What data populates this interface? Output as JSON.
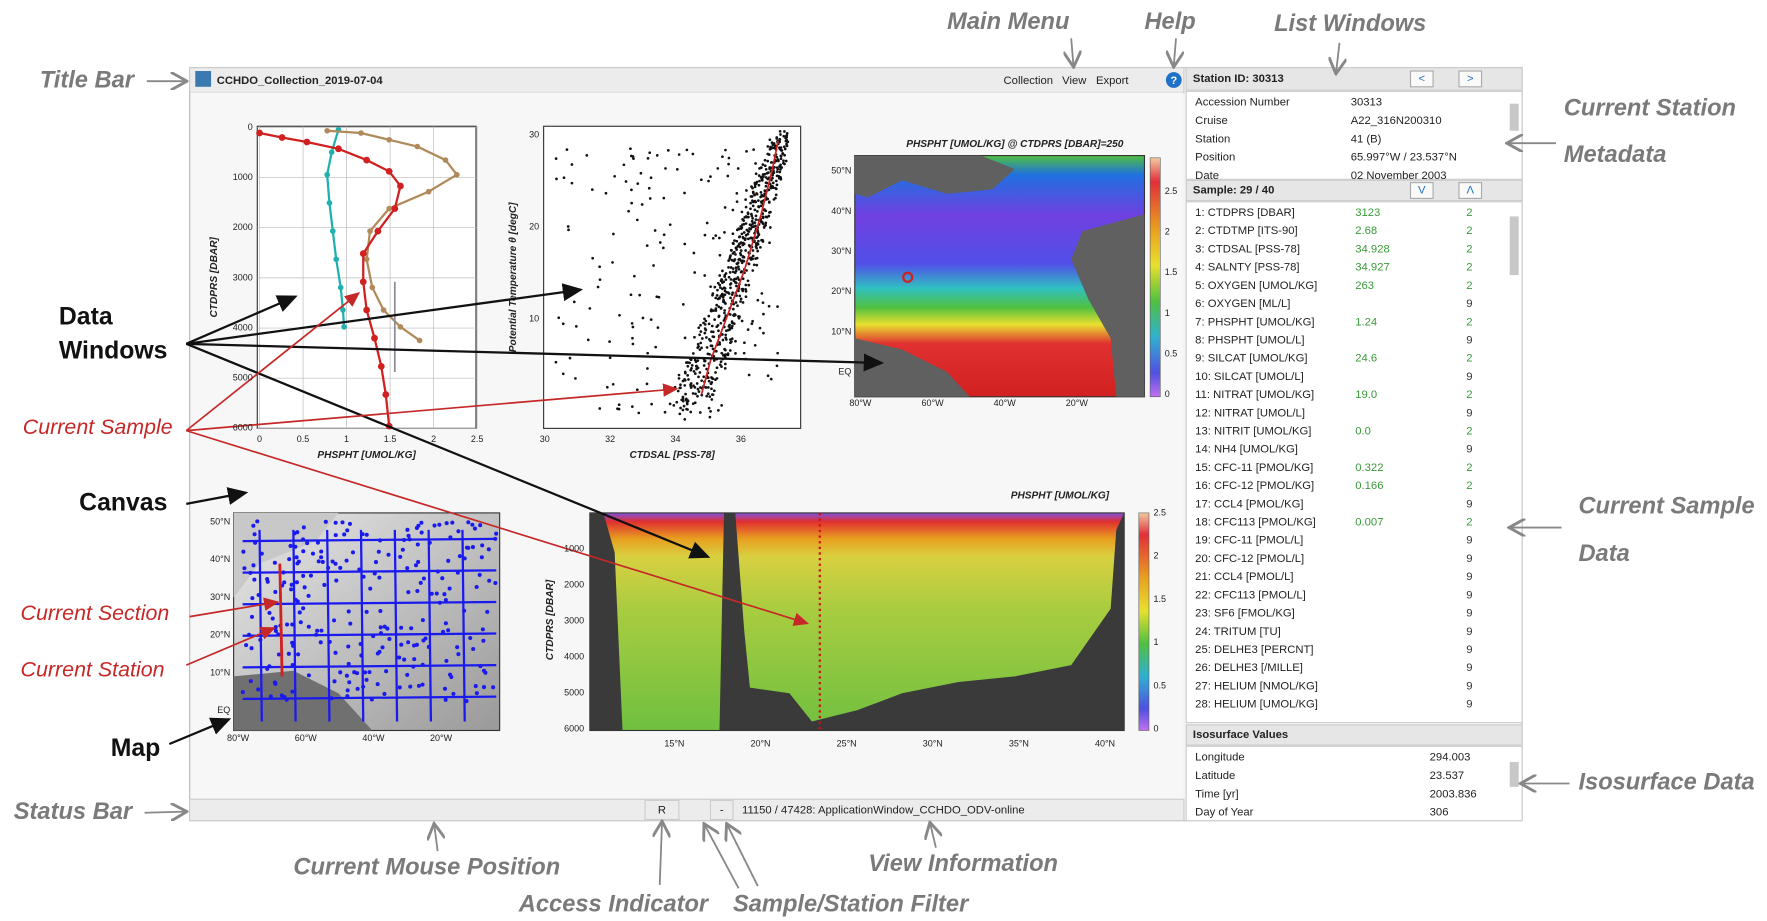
{
  "window": {
    "title": "CCHDO_Collection_2019-07-04",
    "menu": [
      "Collection",
      "View",
      "Export"
    ],
    "help": "?"
  },
  "station": {
    "header": "Station ID: 30313",
    "prev": "<",
    "next": ">",
    "rows": [
      [
        "Accession Number",
        "30313"
      ],
      [
        "Cruise",
        "A22_316N200310"
      ],
      [
        "Station",
        "41 (B)"
      ],
      [
        "Position",
        "65.997°W / 23.537°N"
      ],
      [
        "Date",
        "02 November 2003"
      ]
    ]
  },
  "sample": {
    "header": "Sample: 29 / 40",
    "down": "V",
    "up": "Λ",
    "rows": [
      {
        "name": "1: CTDPRS [DBAR]",
        "value": "3123",
        "flag": "2"
      },
      {
        "name": "2: CTDTMP [ITS-90]",
        "value": "2.68",
        "flag": "2"
      },
      {
        "name": "3: CTDSAL [PSS-78]",
        "value": "34.928",
        "flag": "2"
      },
      {
        "name": "4: SALNTY [PSS-78]",
        "value": "34.927",
        "flag": "2"
      },
      {
        "name": "5: OXYGEN [UMOL/KG]",
        "value": "263",
        "flag": "2"
      },
      {
        "name": "6: OXYGEN [ML/L]",
        "flag": "9"
      },
      {
        "name": "7: PHSPHT [UMOL/KG]",
        "value": "1.24",
        "flag": "2"
      },
      {
        "name": "8: PHSPHT [UMOL/L]",
        "flag": "9"
      },
      {
        "name": "9: SILCAT [UMOL/KG]",
        "value": "24.6",
        "flag": "2"
      },
      {
        "name": "10: SILCAT [UMOL/L]",
        "flag": "9"
      },
      {
        "name": "11: NITRAT [UMOL/KG]",
        "value": "19.0",
        "flag": "2"
      },
      {
        "name": "12: NITRAT [UMOL/L]",
        "flag": "9"
      },
      {
        "name": "13: NITRIT [UMOL/KG]",
        "value": "0.0",
        "flag": "2"
      },
      {
        "name": "14: NH4 [UMOL/KG]",
        "flag": "9"
      },
      {
        "name": "15: CFC-11 [PMOL/KG]",
        "value": "0.322",
        "flag": "2"
      },
      {
        "name": "16: CFC-12 [PMOL/KG]",
        "value": "0.166",
        "flag": "2"
      },
      {
        "name": "17: CCL4 [PMOL/KG]",
        "flag": "9"
      },
      {
        "name": "18: CFC113 [PMOL/KG]",
        "value": "0.007",
        "flag": "2"
      },
      {
        "name": "19: CFC-11 [PMOL/L]",
        "flag": "9"
      },
      {
        "name": "20: CFC-12 [PMOL/L]",
        "flag": "9"
      },
      {
        "name": "21: CCL4 [PMOL/L]",
        "flag": "9"
      },
      {
        "name": "22: CFC113 [PMOL/L]",
        "flag": "9"
      },
      {
        "name": "23: SF6 [FMOL/KG]",
        "flag": "9"
      },
      {
        "name": "24: TRITUM [TU]",
        "flag": "9"
      },
      {
        "name": "25: DELHE3 [PERCNT]",
        "flag": "9"
      },
      {
        "name": "26: DELHE3 [/MILLE]",
        "flag": "9"
      },
      {
        "name": "27: HELIUM [NMOL/KG]",
        "flag": "9"
      },
      {
        "name": "28: HELIUM [UMOL/KG]",
        "flag": "9"
      }
    ]
  },
  "isosurface": {
    "header": "Isosurface Values",
    "rows": [
      [
        "Longitude",
        "294.003"
      ],
      [
        "Latitude",
        "23.537"
      ],
      [
        "Time [yr]",
        "2003.836"
      ],
      [
        "Day of Year",
        "306"
      ]
    ]
  },
  "status_bar": {
    "access": "R",
    "filter": "-",
    "view_info": "11150 / 47428: ApplicationWindow_CCHDO_ODV-online"
  },
  "plots": {
    "profile": {
      "x_label": "PHSPHT [UMOL/KG]",
      "y_label": "CTDPRS [DBAR]",
      "x_ticks": [
        "0",
        "0.5",
        "1",
        "1.5",
        "2",
        "2.5"
      ],
      "y_ticks": [
        "0",
        "1000",
        "2000",
        "3000",
        "4000",
        "5000",
        "6000"
      ]
    },
    "scatter": {
      "x_label": "CTDSAL [PSS-78]",
      "y_label": "Potential Temperature θ [degC]",
      "x_ticks": [
        "30",
        "32",
        "34",
        "36"
      ],
      "y_ticks": [
        "30",
        "20",
        "10"
      ]
    },
    "surface_map": {
      "title": "PHSPHT [UMOL/KG] @ CTDPRS [DBAR]=250",
      "lat_ticks": [
        "50°N",
        "40°N",
        "30°N",
        "20°N",
        "10°N",
        "EQ"
      ],
      "lon_ticks": [
        "80°W",
        "60°W",
        "40°W",
        "20°W"
      ],
      "colorbar_ticks": [
        "2.5",
        "2",
        "1.5",
        "1",
        "0.5",
        "0"
      ]
    },
    "station_map": {
      "lat_ticks": [
        "50°N",
        "40°N",
        "30°N",
        "20°N",
        "10°N",
        "EQ"
      ],
      "lon_ticks": [
        "80°W",
        "60°W",
        "40°W",
        "20°W"
      ]
    },
    "section": {
      "title": "PHSPHT [UMOL/KG]",
      "y_label": "CTDPRS [DBAR]",
      "y_ticks": [
        "1000",
        "2000",
        "3000",
        "4000",
        "5000",
        "6000"
      ],
      "x_ticks": [
        "15°N",
        "20°N",
        "25°N",
        "30°N",
        "35°N",
        "40°N"
      ],
      "colorbar_ticks": [
        "2.5",
        "2",
        "1.5",
        "1",
        "0.5",
        "0"
      ]
    }
  },
  "annotations": {
    "title_bar": "Title Bar",
    "main_menu": "Main Menu",
    "help": "Help",
    "list_windows": "List Windows",
    "current_station_metadata": [
      "Current Station",
      "Metadata"
    ],
    "data_windows": [
      "Data",
      "Windows"
    ],
    "current_sample": "Current Sample",
    "canvas": "Canvas",
    "current_section": "Current Section",
    "current_station": "Current Station",
    "map": "Map",
    "status_bar": "Status Bar",
    "current_mouse_position": "Current Mouse Position",
    "access_indicator": "Access Indicator",
    "sample_station_filter": "Sample/Station Filter",
    "view_information": "View Information",
    "current_sample_data": [
      "Current Sample",
      "Data"
    ],
    "isosurface_data": "Isosurface Data"
  }
}
